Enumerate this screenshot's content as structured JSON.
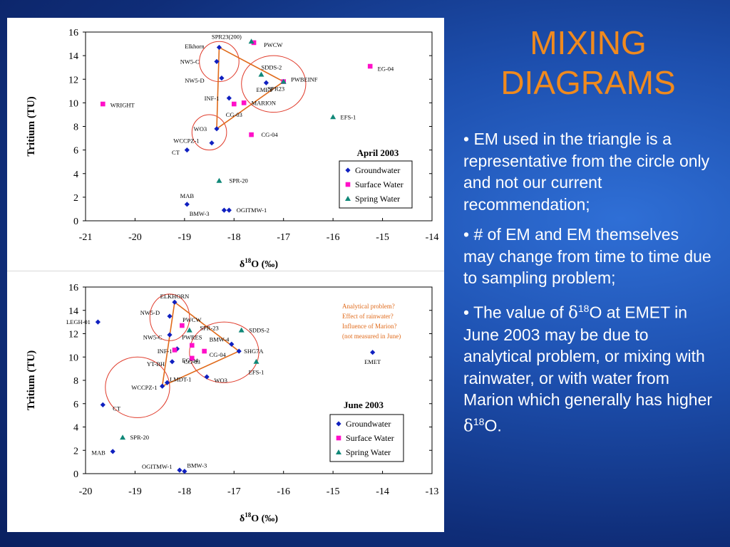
{
  "title": {
    "line1": "MIXING",
    "line2": "DIAGRAMS"
  },
  "bullets": [
    {
      "text": "• EM used in the triangle is a representative from the circle only and not our current recommendation;"
    },
    {
      "text": "• # of EM and EM themselves may change from time to time due to sampling problem;"
    },
    {
      "prefix": "• The value of ",
      "delta": "δ",
      "sup": "18",
      "mid": "O at EMET in June 2003 may be due to analytical problem, or mixing with rainwater, or with water from Marion which generally has higher ",
      "delta2": "δ",
      "sup2": "18",
      "suffix": "O."
    }
  ],
  "colors": {
    "groundwater": "#1020c0",
    "surface": "#ff10c8",
    "spring": "#108878",
    "annotation": "#e06a1a",
    "title": "#f08a1e"
  },
  "chart_data": [
    {
      "type": "scatter",
      "title": "April 2003",
      "xlabel_delta": "δ",
      "xlabel_sup": "18",
      "xlabel_rest": "O (‰)",
      "ylabel": "Tritium (TU)",
      "xlim": [
        -21,
        -14
      ],
      "ylim": [
        0,
        16
      ],
      "xticks": [
        -21,
        -20,
        -19,
        -18,
        -17,
        -16,
        -15,
        -14
      ],
      "yticks": [
        0,
        2,
        4,
        6,
        8,
        10,
        12,
        14,
        16
      ],
      "legend": [
        "Groundwater",
        "Surface Water",
        "Spring Water"
      ],
      "series": [
        {
          "name": "Groundwater",
          "marker": "diamond",
          "points": [
            {
              "x": -18.3,
              "y": 14.7,
              "label": "Elkhorn",
              "lx": -18.6,
              "ly": 14.8,
              "anchor": "end"
            },
            {
              "x": -18.35,
              "y": 13.5,
              "label": "NW5-C",
              "lx": -18.7,
              "ly": 13.5,
              "anchor": "end"
            },
            {
              "x": -18.25,
              "y": 12.1,
              "label": "NW5-D",
              "lx": -18.6,
              "ly": 11.9,
              "anchor": "end"
            },
            {
              "x": -18.1,
              "y": 10.4,
              "label": "INF-1",
              "lx": -18.3,
              "ly": 10.4,
              "anchor": "end"
            },
            {
              "x": -17.35,
              "y": 11.7,
              "label": "EMET",
              "lx": -17.55,
              "ly": 11.1,
              "anchor": "start"
            },
            {
              "x": -18.35,
              "y": 7.8,
              "label": "WO3",
              "lx": -18.55,
              "ly": 7.8,
              "anchor": "end"
            },
            {
              "x": -18.45,
              "y": 6.6,
              "label": "WCCPZ-1",
              "lx": -18.7,
              "ly": 6.8,
              "anchor": "end"
            },
            {
              "x": -18.95,
              "y": 6.0,
              "label": "CT",
              "lx": -19.1,
              "ly": 5.8,
              "anchor": "end"
            },
            {
              "x": -18.95,
              "y": 1.4,
              "label": "MAB",
              "lx": -18.95,
              "ly": 2.1,
              "anchor": "middle"
            },
            {
              "x": -18.2,
              "y": 0.9,
              "label": "BMW-3",
              "lx": -18.5,
              "ly": 0.6,
              "anchor": "end"
            },
            {
              "x": -18.1,
              "y": 0.9,
              "label": "OGITMW-1",
              "lx": -17.95,
              "ly": 0.9,
              "anchor": "start"
            }
          ]
        },
        {
          "name": "Surface Water",
          "marker": "square",
          "points": [
            {
              "x": -17.6,
              "y": 15.1,
              "label": "PWCW",
              "lx": -17.4,
              "ly": 14.9,
              "anchor": "start"
            },
            {
              "x": -15.25,
              "y": 13.1,
              "label": "EG-04",
              "lx": -15.1,
              "ly": 12.9,
              "anchor": "start"
            },
            {
              "x": -17.0,
              "y": 11.8,
              "label": "PWBEINF",
              "lx": -16.85,
              "ly": 12.0,
              "anchor": "start"
            },
            {
              "x": -17.8,
              "y": 10.0,
              "label": "MARION",
              "lx": -17.65,
              "ly": 10.0,
              "anchor": "start"
            },
            {
              "x": -18.0,
              "y": 9.9,
              "label": "CG-03",
              "lx": -18.0,
              "ly": 9.0,
              "anchor": "middle"
            },
            {
              "x": -17.65,
              "y": 7.3,
              "label": "CG-04",
              "lx": -17.45,
              "ly": 7.3,
              "anchor": "start"
            },
            {
              "x": -20.65,
              "y": 9.9,
              "label": "WRIGHT",
              "lx": -20.5,
              "ly": 9.8,
              "anchor": "start"
            }
          ]
        },
        {
          "name": "Spring Water",
          "marker": "triangle",
          "points": [
            {
              "x": -17.65,
              "y": 15.2,
              "label": "SPR23(200)",
              "lx": -18.15,
              "ly": 15.6,
              "anchor": "middle"
            },
            {
              "x": -17.45,
              "y": 12.4,
              "label": "SDDS-2",
              "lx": -17.45,
              "ly": 13.0,
              "anchor": "start"
            },
            {
              "x": -17.0,
              "y": 11.8,
              "label": "SPR23",
              "lx": -17.15,
              "ly": 11.2,
              "anchor": "middle"
            },
            {
              "x": -16.0,
              "y": 8.8,
              "label": "EFS-1",
              "lx": -15.85,
              "ly": 8.8,
              "anchor": "start"
            },
            {
              "x": -18.3,
              "y": 3.4,
              "label": "SPR-20",
              "lx": -18.1,
              "ly": 3.4,
              "anchor": "start"
            }
          ]
        }
      ],
      "circles": [
        {
          "cx": -18.3,
          "cy": 13.5,
          "rx": 0.4,
          "ry": 1.7
        },
        {
          "cx": -17.2,
          "cy": 11.6,
          "rx": 0.65,
          "ry": 2.4
        },
        {
          "cx": -18.5,
          "cy": 7.5,
          "rx": 0.35,
          "ry": 1.5
        }
      ],
      "triangle": [
        [
          -18.3,
          14.7
        ],
        [
          -17.0,
          11.8
        ],
        [
          -18.35,
          7.8
        ]
      ]
    },
    {
      "type": "scatter",
      "title": "June 2003",
      "xlabel_delta": "δ",
      "xlabel_sup": "18",
      "xlabel_rest": "O (‰)",
      "ylabel": "Tritium (TU)",
      "xlim": [
        -20,
        -13
      ],
      "ylim": [
        0,
        16
      ],
      "xticks": [
        -20,
        -19,
        -18,
        -17,
        -16,
        -15,
        -14,
        -13
      ],
      "yticks": [
        0,
        2,
        4,
        6,
        8,
        10,
        12,
        14,
        16
      ],
      "legend": [
        "Groundwater",
        "Surface Water",
        "Spring Water"
      ],
      "annotation": [
        "Analytical problem?",
        "Effect of rainwater?",
        "Influence of Marion?",
        "(not measured in June)"
      ],
      "series": [
        {
          "name": "Groundwater",
          "marker": "diamond",
          "points": [
            {
              "x": -18.2,
              "y": 14.7,
              "label": "ELKHORN",
              "lx": -18.2,
              "ly": 15.2,
              "anchor": "middle"
            },
            {
              "x": -18.3,
              "y": 13.5,
              "label": "NW5-D",
              "lx": -18.5,
              "ly": 13.8,
              "anchor": "end"
            },
            {
              "x": -18.3,
              "y": 11.9,
              "label": "NW5-C",
              "lx": -18.45,
              "ly": 11.7,
              "anchor": "end"
            },
            {
              "x": -19.75,
              "y": 13.0,
              "label": "LEGH-01",
              "lx": -19.9,
              "ly": 13.0,
              "anchor": "end"
            },
            {
              "x": -18.15,
              "y": 10.7,
              "label": "INF-1",
              "lx": -18.25,
              "ly": 10.5,
              "anchor": "end"
            },
            {
              "x": -18.25,
              "y": 9.6,
              "label": "YT-BH",
              "lx": -18.4,
              "ly": 9.4,
              "anchor": "end"
            },
            {
              "x": -17.05,
              "y": 11.1,
              "label": "BMW-4",
              "lx": -17.5,
              "ly": 11.5,
              "anchor": "start"
            },
            {
              "x": -16.9,
              "y": 10.5,
              "label": "SHG7A",
              "lx": -16.8,
              "ly": 10.5,
              "anchor": "start"
            },
            {
              "x": -17.55,
              "y": 8.3,
              "label": "WO3",
              "lx": -17.4,
              "ly": 8.0,
              "anchor": "start"
            },
            {
              "x": -18.35,
              "y": 7.8,
              "label": "LMDT-1",
              "lx": -18.3,
              "ly": 8.1,
              "anchor": "start"
            },
            {
              "x": -18.45,
              "y": 7.5,
              "label": "WCCPZ-1",
              "lx": -18.55,
              "ly": 7.4,
              "anchor": "end"
            },
            {
              "x": -19.65,
              "y": 5.9,
              "label": "CT",
              "lx": -19.45,
              "ly": 5.6,
              "anchor": "start"
            },
            {
              "x": -19.45,
              "y": 1.9,
              "label": "MAB",
              "lx": -19.6,
              "ly": 1.8,
              "anchor": "end"
            },
            {
              "x": -18.1,
              "y": 0.3,
              "label": "OGITMW-1",
              "lx": -18.25,
              "ly": 0.6,
              "anchor": "end"
            },
            {
              "x": -18.0,
              "y": 0.2,
              "label": "BMW-3",
              "lx": -17.95,
              "ly": 0.7,
              "anchor": "start"
            },
            {
              "x": -14.2,
              "y": 10.4,
              "label": "EMET",
              "lx": -14.2,
              "ly": 9.6,
              "anchor": "middle"
            }
          ]
        },
        {
          "name": "Surface Water",
          "marker": "square",
          "points": [
            {
              "x": -18.05,
              "y": 12.7,
              "label": "PWCW",
              "lx": -17.85,
              "ly": 13.2,
              "anchor": "middle"
            },
            {
              "x": -17.85,
              "y": 11.0,
              "label": "PWRES",
              "lx": -17.85,
              "ly": 11.7,
              "anchor": "middle"
            },
            {
              "x": -17.6,
              "y": 10.5,
              "label": "CG-04",
              "lx": -17.5,
              "ly": 10.2,
              "anchor": "start"
            },
            {
              "x": -18.2,
              "y": 10.6,
              "label": "EG-04",
              "lx": -18.05,
              "ly": 9.7,
              "anchor": "start"
            },
            {
              "x": -17.85,
              "y": 9.9,
              "label": "CG-03",
              "lx": -17.85,
              "ly": 9.6,
              "anchor": "middle"
            }
          ]
        },
        {
          "name": "Spring Water",
          "marker": "triangle",
          "points": [
            {
              "x": -17.9,
              "y": 12.3,
              "label": "SPR-23",
              "lx": -17.5,
              "ly": 12.5,
              "anchor": "middle"
            },
            {
              "x": -16.85,
              "y": 12.3,
              "label": "SDDS-2",
              "lx": -16.7,
              "ly": 12.3,
              "anchor": "start"
            },
            {
              "x": -16.55,
              "y": 9.6,
              "label": "EFS-1",
              "lx": -16.55,
              "ly": 8.7,
              "anchor": "middle"
            },
            {
              "x": -19.25,
              "y": 3.1,
              "label": "SPR-20",
              "lx": -19.1,
              "ly": 3.1,
              "anchor": "start"
            }
          ]
        }
      ],
      "circles": [
        {
          "cx": -18.3,
          "cy": 13.4,
          "rx": 0.4,
          "ry": 2.0
        },
        {
          "cx": -17.2,
          "cy": 10.4,
          "rx": 0.7,
          "ry": 2.6
        },
        {
          "cx": -18.95,
          "cy": 7.4,
          "rx": 0.65,
          "ry": 2.6
        }
      ],
      "triangle": [
        [
          -18.2,
          14.7
        ],
        [
          -16.9,
          10.5
        ],
        [
          -18.45,
          7.5
        ]
      ]
    }
  ]
}
